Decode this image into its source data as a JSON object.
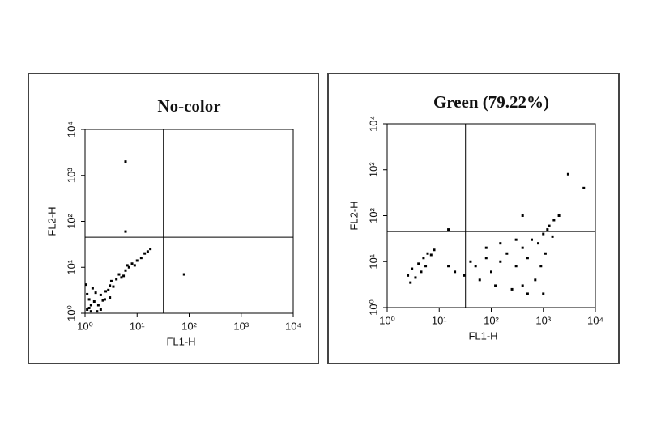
{
  "chart_data": [
    {
      "type": "scatter",
      "title": "No-color",
      "x_label": "FL1-H",
      "y_label": "FL2-H",
      "log_x": true,
      "log_y": true,
      "color": "#000000",
      "xlim": [
        1,
        10000
      ],
      "ylim": [
        1,
        10000
      ],
      "xticks": [
        {
          "value": 1,
          "label": "10⁰"
        },
        {
          "value": 10,
          "label": "10¹"
        },
        {
          "value": 100,
          "label": "10²"
        },
        {
          "value": 1000,
          "label": "10³"
        },
        {
          "value": 10000,
          "label": "10⁴"
        }
      ],
      "yticks": [
        {
          "value": 1,
          "label": "10⁰"
        },
        {
          "value": 10,
          "label": "10¹"
        },
        {
          "value": 100,
          "label": "10²"
        },
        {
          "value": 1000,
          "label": "10³"
        },
        {
          "value": 10000,
          "label": "10⁴"
        }
      ],
      "quadrant": {
        "x": 32,
        "y": 45
      },
      "x": [
        1.1,
        1.3,
        1.5,
        1.2,
        1.8,
        2.0,
        1.6,
        2.5,
        2.2,
        3.0,
        2.8,
        3.5,
        4.0,
        3.2,
        5.0,
        4.5,
        6.0,
        5.5,
        7.0,
        8.0,
        9.0,
        10,
        12,
        14,
        1.4,
        1.1,
        2.0,
        1.3,
        1.7,
        2.4,
        16,
        18,
        6.5,
        1.05,
        3.0,
        1.2,
        6,
        80,
        6
      ],
      "values": [
        1.2,
        1.1,
        1.8,
        2.0,
        1.5,
        2.5,
        2.8,
        3.0,
        1.9,
        4.0,
        3.2,
        3.8,
        5.5,
        5.0,
        6.0,
        7.0,
        8.5,
        6.5,
        10,
        12,
        11,
        14,
        16,
        20,
        3.5,
        2.6,
        1.2,
        1.5,
        1.1,
        2.0,
        22,
        25,
        11,
        4.2,
        2.2,
        1.3,
        2000,
        7,
        60
      ]
    },
    {
      "type": "scatter",
      "title": "Green (79.22%)",
      "x_label": "FL1-H",
      "y_label": "FL2-H",
      "log_x": true,
      "log_y": true,
      "color": "#000000",
      "xlim": [
        1,
        10000
      ],
      "ylim": [
        1,
        10000
      ],
      "xticks": [
        {
          "value": 1,
          "label": "10⁰"
        },
        {
          "value": 10,
          "label": "10¹"
        },
        {
          "value": 100,
          "label": "10²"
        },
        {
          "value": 1000,
          "label": "10³"
        },
        {
          "value": 10000,
          "label": "10⁴"
        }
      ],
      "yticks": [
        {
          "value": 1,
          "label": "10⁰"
        },
        {
          "value": 10,
          "label": "10¹"
        },
        {
          "value": 100,
          "label": "10²"
        },
        {
          "value": 1000,
          "label": "10³"
        },
        {
          "value": 10000,
          "label": "10⁴"
        }
      ],
      "quadrant": {
        "x": 32,
        "y": 45
      },
      "x": [
        2.5,
        3,
        4,
        5,
        6,
        3.5,
        4.5,
        7,
        8,
        2.8,
        5.5,
        30,
        50,
        80,
        100,
        150,
        200,
        300,
        400,
        500,
        600,
        800,
        1000,
        1200,
        1500,
        700,
        400,
        250,
        120,
        60,
        40,
        900,
        1100,
        1300,
        1600,
        2000,
        300,
        150,
        80,
        500,
        1000,
        20,
        15,
        6000,
        3000,
        400,
        15
      ],
      "values": [
        5,
        7,
        9,
        12,
        15,
        4.5,
        6,
        14,
        18,
        3.5,
        8,
        5,
        8,
        12,
        6,
        10,
        15,
        8,
        20,
        12,
        30,
        25,
        40,
        50,
        35,
        4,
        3,
        2.5,
        3,
        4,
        10,
        8,
        15,
        60,
        80,
        100,
        30,
        25,
        20,
        2,
        2,
        6,
        8,
        400,
        800,
        100,
        50
      ]
    }
  ]
}
